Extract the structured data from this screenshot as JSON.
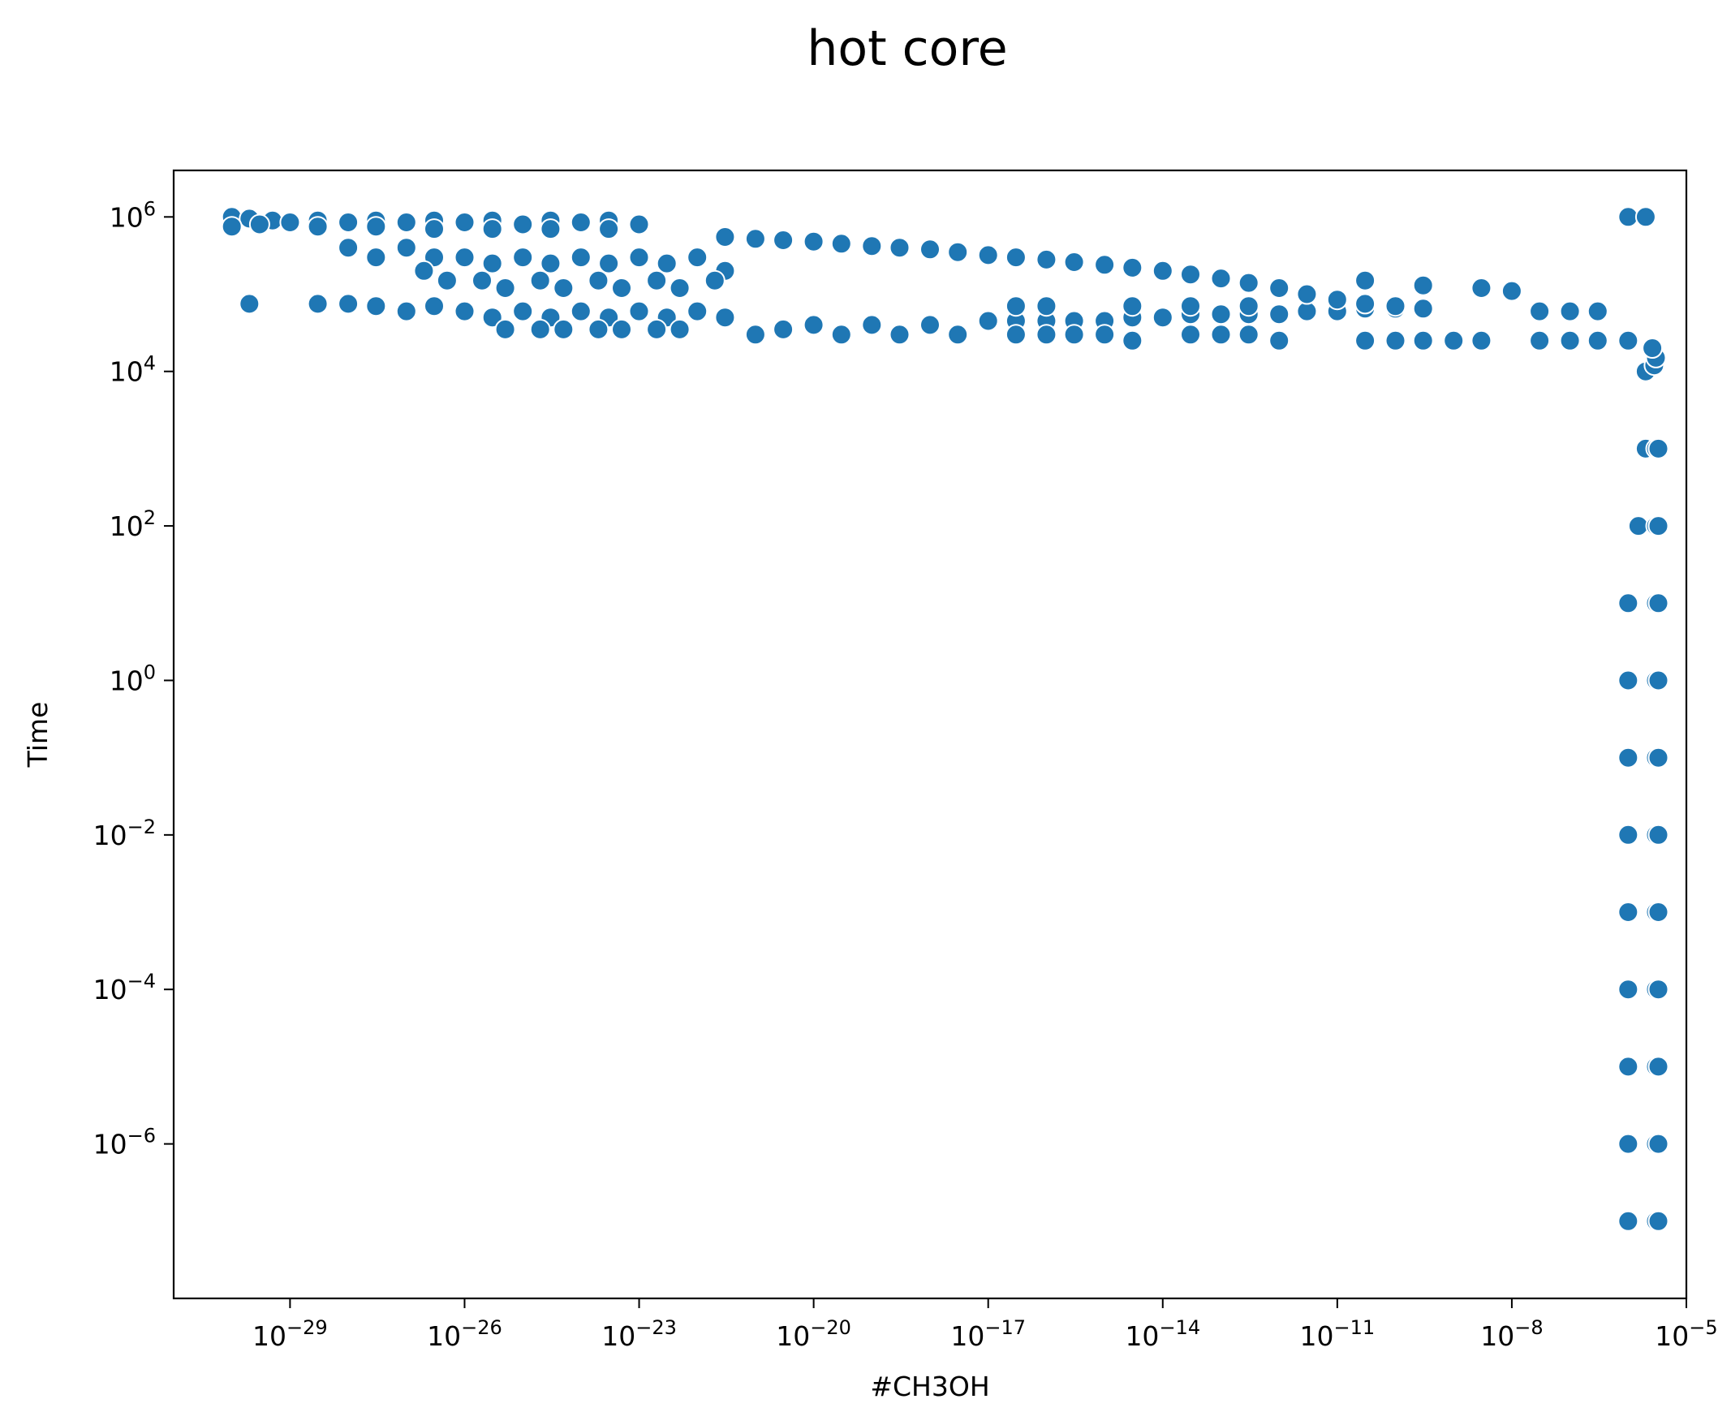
{
  "chart_data": {
    "type": "scatter",
    "title": "hot core",
    "xlabel": "#CH3OH",
    "ylabel": "Time",
    "xscale": "log",
    "yscale": "log",
    "xlim": [
      1e-31,
      1e-05
    ],
    "ylim": [
      1e-08,
      4000000.0
    ],
    "grid": false,
    "legend": "none",
    "marker_color": "#1f77b4",
    "marker_edge_color": "#ffffff",
    "x_tick_labels": [
      {
        "base": "10",
        "exp": "−29",
        "value": 1e-29
      },
      {
        "base": "10",
        "exp": "−26",
        "value": 1e-26
      },
      {
        "base": "10",
        "exp": "−23",
        "value": 1e-23
      },
      {
        "base": "10",
        "exp": "−20",
        "value": 1e-20
      },
      {
        "base": "10",
        "exp": "−17",
        "value": 1e-17
      },
      {
        "base": "10",
        "exp": "−14",
        "value": 1e-14
      },
      {
        "base": "10",
        "exp": "−11",
        "value": 1e-11
      },
      {
        "base": "10",
        "exp": "−8",
        "value": 1e-08
      },
      {
        "base": "10",
        "exp": "−5",
        "value": 1e-05
      }
    ],
    "y_tick_labels": [
      {
        "base": "10",
        "exp": "6",
        "value": 1000000.0
      },
      {
        "base": "10",
        "exp": "4",
        "value": 10000.0
      },
      {
        "base": "10",
        "exp": "2",
        "value": 100.0
      },
      {
        "base": "10",
        "exp": "0",
        "value": 1
      },
      {
        "base": "10",
        "exp": "−2",
        "value": 0.01
      },
      {
        "base": "10",
        "exp": "−4",
        "value": 0.0001
      },
      {
        "base": "10",
        "exp": "−6",
        "value": 1e-06
      }
    ],
    "points": [
      {
        "x": 1e-06,
        "y": 1e-07
      },
      {
        "x": 3e-06,
        "y": 1e-07
      },
      {
        "x": 3.3e-06,
        "y": 1e-07
      },
      {
        "x": 1e-06,
        "y": 1e-06
      },
      {
        "x": 3e-06,
        "y": 1e-06
      },
      {
        "x": 3.3e-06,
        "y": 1e-06
      },
      {
        "x": 1e-06,
        "y": 1e-05
      },
      {
        "x": 3e-06,
        "y": 1e-05
      },
      {
        "x": 3.3e-06,
        "y": 1e-05
      },
      {
        "x": 1e-06,
        "y": 0.0001
      },
      {
        "x": 3e-06,
        "y": 0.0001
      },
      {
        "x": 3.3e-06,
        "y": 0.0001
      },
      {
        "x": 1e-06,
        "y": 0.001
      },
      {
        "x": 3e-06,
        "y": 0.001
      },
      {
        "x": 3.3e-06,
        "y": 0.001
      },
      {
        "x": 1e-06,
        "y": 0.01
      },
      {
        "x": 3e-06,
        "y": 0.01
      },
      {
        "x": 3.3e-06,
        "y": 0.01
      },
      {
        "x": 1e-06,
        "y": 0.1
      },
      {
        "x": 3e-06,
        "y": 0.1
      },
      {
        "x": 3.3e-06,
        "y": 0.1
      },
      {
        "x": 1e-06,
        "y": 1
      },
      {
        "x": 3e-06,
        "y": 1
      },
      {
        "x": 3.3e-06,
        "y": 1
      },
      {
        "x": 1e-06,
        "y": 10
      },
      {
        "x": 3e-06,
        "y": 10
      },
      {
        "x": 3.3e-06,
        "y": 10
      },
      {
        "x": 1.5e-06,
        "y": 100
      },
      {
        "x": 3e-06,
        "y": 100
      },
      {
        "x": 3.3e-06,
        "y": 100
      },
      {
        "x": 2e-06,
        "y": 1000
      },
      {
        "x": 3e-06,
        "y": 1000
      },
      {
        "x": 3.3e-06,
        "y": 1000
      },
      {
        "x": 2e-06,
        "y": 10000.0
      },
      {
        "x": 2.8e-06,
        "y": 12000.0
      },
      {
        "x": 3e-06,
        "y": 15000.0
      },
      {
        "x": 2.6e-06,
        "y": 20000.0
      },
      {
        "x": 1e-06,
        "y": 1000000.0
      },
      {
        "x": 2e-06,
        "y": 1000000.0
      },
      {
        "x": 1e-30,
        "y": 1000000.0
      },
      {
        "x": 2e-30,
        "y": 950000.0
      },
      {
        "x": 5e-30,
        "y": 900000.0
      },
      {
        "x": 1e-29,
        "y": 850000.0
      },
      {
        "x": 3e-29,
        "y": 900000.0
      },
      {
        "x": 1e-28,
        "y": 850000.0
      },
      {
        "x": 3e-28,
        "y": 900000.0
      },
      {
        "x": 1e-27,
        "y": 850000.0
      },
      {
        "x": 3e-27,
        "y": 900000.0
      },
      {
        "x": 1e-26,
        "y": 850000.0
      },
      {
        "x": 3e-26,
        "y": 900000.0
      },
      {
        "x": 1e-25,
        "y": 800000.0
      },
      {
        "x": 3e-25,
        "y": 900000.0
      },
      {
        "x": 1e-24,
        "y": 850000.0
      },
      {
        "x": 3e-24,
        "y": 900000.0
      },
      {
        "x": 1e-23,
        "y": 800000.0
      },
      {
        "x": 1e-30,
        "y": 750000.0
      },
      {
        "x": 3e-30,
        "y": 800000.0
      },
      {
        "x": 3e-29,
        "y": 750000.0
      },
      {
        "x": 3e-28,
        "y": 750000.0
      },
      {
        "x": 3e-27,
        "y": 700000.0
      },
      {
        "x": 3e-26,
        "y": 700000.0
      },
      {
        "x": 3e-25,
        "y": 700000.0
      },
      {
        "x": 3e-24,
        "y": 700000.0
      },
      {
        "x": 1e-28,
        "y": 400000.0
      },
      {
        "x": 3e-28,
        "y": 300000.0
      },
      {
        "x": 1e-27,
        "y": 400000.0
      },
      {
        "x": 3e-27,
        "y": 300000.0
      },
      {
        "x": 1e-26,
        "y": 300000.0
      },
      {
        "x": 3e-26,
        "y": 250000.0
      },
      {
        "x": 1e-25,
        "y": 300000.0
      },
      {
        "x": 3e-25,
        "y": 250000.0
      },
      {
        "x": 1e-24,
        "y": 300000.0
      },
      {
        "x": 3e-24,
        "y": 250000.0
      },
      {
        "x": 1e-23,
        "y": 300000.0
      },
      {
        "x": 3e-23,
        "y": 250000.0
      },
      {
        "x": 1e-22,
        "y": 300000.0
      },
      {
        "x": 3e-22,
        "y": 200000.0
      },
      {
        "x": 2e-27,
        "y": 200000.0
      },
      {
        "x": 5e-27,
        "y": 150000.0
      },
      {
        "x": 2e-26,
        "y": 150000.0
      },
      {
        "x": 5e-26,
        "y": 120000.0
      },
      {
        "x": 2e-25,
        "y": 150000.0
      },
      {
        "x": 5e-25,
        "y": 120000.0
      },
      {
        "x": 2e-24,
        "y": 150000.0
      },
      {
        "x": 5e-24,
        "y": 120000.0
      },
      {
        "x": 2e-23,
        "y": 150000.0
      },
      {
        "x": 5e-23,
        "y": 120000.0
      },
      {
        "x": 2e-22,
        "y": 150000.0
      },
      {
        "x": 2e-30,
        "y": 75000.0
      },
      {
        "x": 3e-29,
        "y": 75000.0
      },
      {
        "x": 1e-28,
        "y": 75000.0
      },
      {
        "x": 3e-28,
        "y": 70000.0
      },
      {
        "x": 1e-27,
        "y": 60000.0
      },
      {
        "x": 3e-27,
        "y": 70000.0
      },
      {
        "x": 1e-26,
        "y": 60000.0
      },
      {
        "x": 3e-26,
        "y": 50000.0
      },
      {
        "x": 1e-25,
        "y": 60000.0
      },
      {
        "x": 3e-25,
        "y": 50000.0
      },
      {
        "x": 1e-24,
        "y": 60000.0
      },
      {
        "x": 3e-24,
        "y": 50000.0
      },
      {
        "x": 1e-23,
        "y": 60000.0
      },
      {
        "x": 3e-23,
        "y": 50000.0
      },
      {
        "x": 1e-22,
        "y": 60000.0
      },
      {
        "x": 3e-22,
        "y": 50000.0
      },
      {
        "x": 5e-26,
        "y": 35000.0
      },
      {
        "x": 2e-25,
        "y": 35000.0
      },
      {
        "x": 5e-25,
        "y": 35000.0
      },
      {
        "x": 2e-24,
        "y": 35000.0
      },
      {
        "x": 5e-24,
        "y": 35000.0
      },
      {
        "x": 2e-23,
        "y": 35000.0
      },
      {
        "x": 5e-23,
        "y": 35000.0
      },
      {
        "x": 1e-21,
        "y": 30000.0
      },
      {
        "x": 3e-21,
        "y": 35000.0
      },
      {
        "x": 1e-20,
        "y": 40000.0
      },
      {
        "x": 3e-20,
        "y": 30000.0
      },
      {
        "x": 1e-19,
        "y": 40000.0
      },
      {
        "x": 3e-19,
        "y": 30000.0
      },
      {
        "x": 1e-18,
        "y": 40000.0
      },
      {
        "x": 3e-18,
        "y": 30000.0
      },
      {
        "x": 1e-17,
        "y": 45000.0
      },
      {
        "x": 3e-17,
        "y": 45000.0
      },
      {
        "x": 1e-16,
        "y": 45000.0
      },
      {
        "x": 3e-16,
        "y": 45000.0
      },
      {
        "x": 1e-15,
        "y": 45000.0
      },
      {
        "x": 3e-15,
        "y": 50000.0
      },
      {
        "x": 1e-14,
        "y": 50000.0
      },
      {
        "x": 3e-14,
        "y": 55000.0
      },
      {
        "x": 1e-13,
        "y": 55000.0
      },
      {
        "x": 3e-13,
        "y": 55000.0
      },
      {
        "x": 1e-12,
        "y": 55000.0
      },
      {
        "x": 3e-12,
        "y": 60000.0
      },
      {
        "x": 1e-11,
        "y": 60000.0
      },
      {
        "x": 3e-11,
        "y": 65000.0
      },
      {
        "x": 1e-10,
        "y": 65000.0
      },
      {
        "x": 3e-17,
        "y": 30000.0
      },
      {
        "x": 1e-16,
        "y": 30000.0
      },
      {
        "x": 3e-16,
        "y": 30000.0
      },
      {
        "x": 1e-15,
        "y": 30000.0
      },
      {
        "x": 3e-15,
        "y": 25000.0
      },
      {
        "x": 3e-14,
        "y": 30000.0
      },
      {
        "x": 1e-13,
        "y": 30000.0
      },
      {
        "x": 3e-13,
        "y": 30000.0
      },
      {
        "x": 1e-12,
        "y": 25000.0
      },
      {
        "x": 3e-11,
        "y": 25000.0
      },
      {
        "x": 1e-10,
        "y": 25000.0
      },
      {
        "x": 3e-10,
        "y": 25000.0
      },
      {
        "x": 1e-09,
        "y": 25000.0
      },
      {
        "x": 3e-09,
        "y": 25000.0
      },
      {
        "x": 3e-17,
        "y": 70000.0
      },
      {
        "x": 1e-16,
        "y": 70000.0
      },
      {
        "x": 3e-15,
        "y": 70000.0
      },
      {
        "x": 3e-14,
        "y": 70000.0
      },
      {
        "x": 3e-13,
        "y": 70000.0
      },
      {
        "x": 3e-11,
        "y": 150000.0
      },
      {
        "x": 3e-10,
        "y": 130000.0
      },
      {
        "x": 3e-09,
        "y": 120000.0
      },
      {
        "x": 1e-08,
        "y": 110000.0
      },
      {
        "x": 3e-08,
        "y": 60000.0
      },
      {
        "x": 1e-07,
        "y": 60000.0
      },
      {
        "x": 3e-07,
        "y": 60000.0
      },
      {
        "x": 3e-07,
        "y": 25000.0
      },
      {
        "x": 1e-07,
        "y": 25000.0
      },
      {
        "x": 3e-08,
        "y": 25000.0
      },
      {
        "x": 1e-06,
        "y": 25000.0
      },
      {
        "x": 3e-22,
        "y": 550000.0
      },
      {
        "x": 1e-21,
        "y": 520000.0
      },
      {
        "x": 3e-21,
        "y": 500000.0
      },
      {
        "x": 1e-20,
        "y": 480000.0
      },
      {
        "x": 3e-20,
        "y": 450000.0
      },
      {
        "x": 1e-19,
        "y": 420000.0
      },
      {
        "x": 3e-19,
        "y": 400000.0
      },
      {
        "x": 1e-18,
        "y": 380000.0
      },
      {
        "x": 3e-18,
        "y": 350000.0
      },
      {
        "x": 1e-17,
        "y": 320000.0
      },
      {
        "x": 3e-17,
        "y": 300000.0
      },
      {
        "x": 1e-16,
        "y": 280000.0
      },
      {
        "x": 3e-16,
        "y": 260000.0
      },
      {
        "x": 1e-15,
        "y": 240000.0
      },
      {
        "x": 3e-15,
        "y": 220000.0
      },
      {
        "x": 1e-14,
        "y": 200000.0
      },
      {
        "x": 3e-14,
        "y": 180000.0
      },
      {
        "x": 1e-13,
        "y": 160000.0
      },
      {
        "x": 3e-13,
        "y": 140000.0
      },
      {
        "x": 1e-12,
        "y": 120000.0
      },
      {
        "x": 3e-12,
        "y": 100000.0
      },
      {
        "x": 1e-11,
        "y": 85000.0
      },
      {
        "x": 3e-11,
        "y": 75000.0
      },
      {
        "x": 1e-10,
        "y": 70000.0
      },
      {
        "x": 3e-10,
        "y": 65000.0
      }
    ]
  }
}
